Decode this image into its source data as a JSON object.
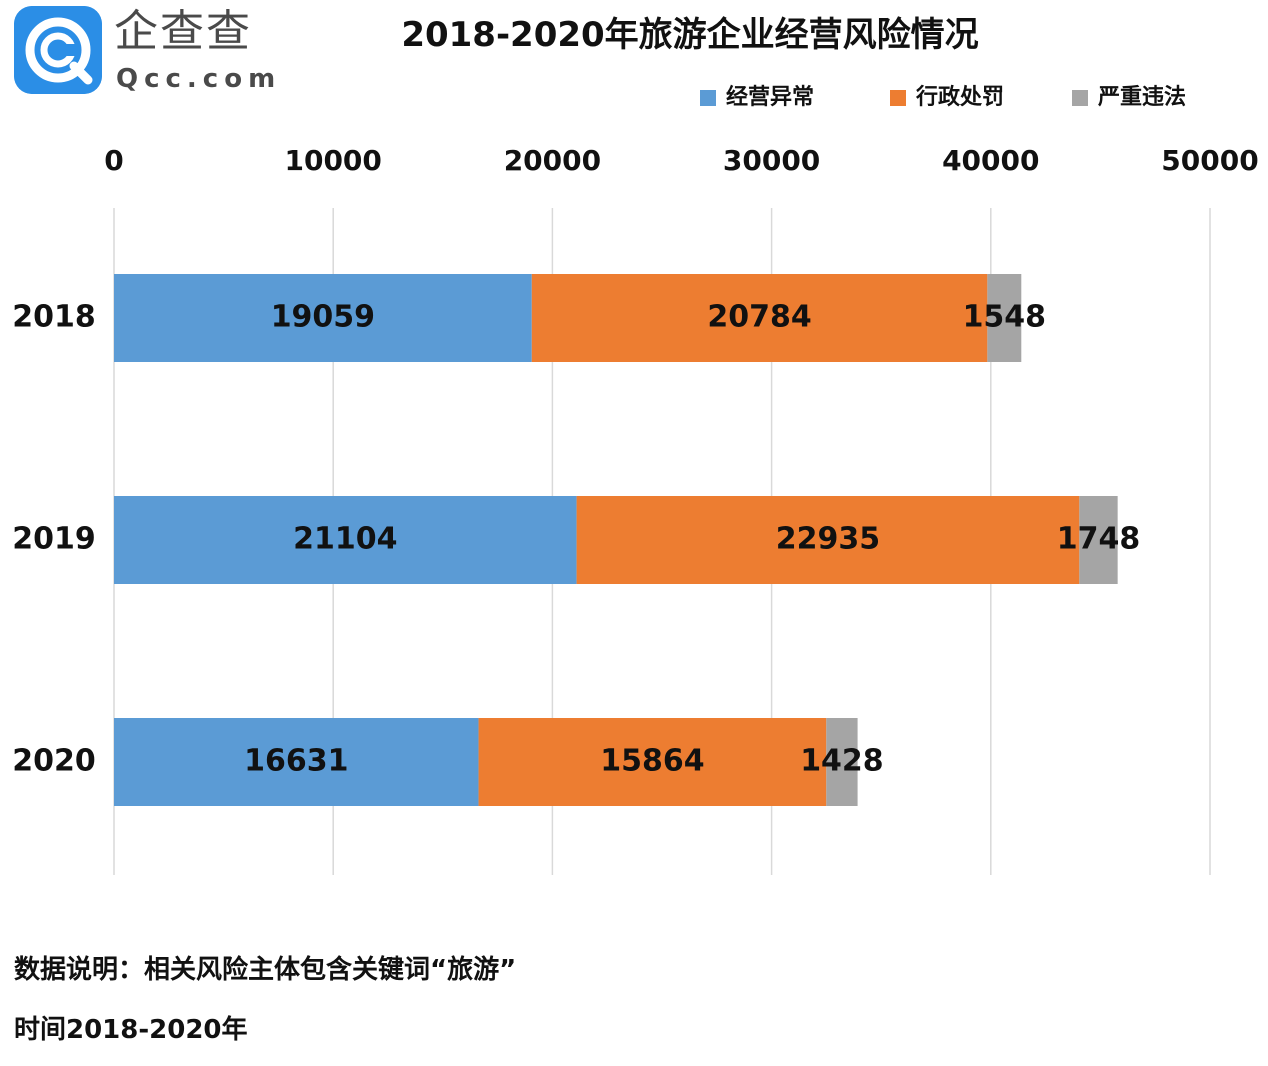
{
  "header": {
    "logo_cn": "企查查",
    "logo_en": "Qcc.com",
    "title": "2018-2020年旅游企业经营风险情况"
  },
  "chart_data": {
    "type": "bar",
    "orientation": "horizontal",
    "stacked": true,
    "title": "2018-2020年旅游企业经营风险情况",
    "categories": [
      "2018",
      "2019",
      "2020"
    ],
    "series": [
      {
        "name": "经营异常",
        "color": "#5b9bd5",
        "values": [
          19059,
          21104,
          16631
        ]
      },
      {
        "name": "行政处罚",
        "color": "#ed7d31",
        "values": [
          20784,
          22935,
          15864
        ]
      },
      {
        "name": "严重违法",
        "color": "#a5a5a5",
        "values": [
          1548,
          1748,
          1428
        ]
      }
    ],
    "xlim": [
      0,
      50000
    ],
    "xticks": [
      "0",
      "10000",
      "20000",
      "30000",
      "40000",
      "50000"
    ],
    "x_axis_position": "top",
    "legend_position": "top-right",
    "grid": true
  },
  "footer": {
    "note": "数据说明：相关风险主体包含关键词“旅游”",
    "period": "时间2018-2020年"
  }
}
